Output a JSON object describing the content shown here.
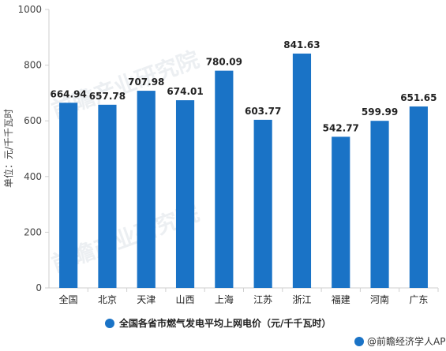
{
  "chart_data": {
    "type": "bar",
    "categories": [
      "全国",
      "北京",
      "天津",
      "山西",
      "上海",
      "江苏",
      "浙江",
      "福建",
      "河南",
      "广东"
    ],
    "series": [
      {
        "name": "全国各省市燃气发电平均上网电价（元/千千瓦时）",
        "values": [
          664.94,
          657.78,
          707.98,
          674.01,
          780.09,
          603.77,
          841.63,
          542.77,
          599.99,
          651.65
        ],
        "color": "#1a73c6"
      }
    ],
    "ylabel": "单位：元/千千瓦时",
    "ylim": [
      0,
      1000
    ],
    "yticks": [
      0,
      200,
      400,
      600,
      800,
      1000
    ],
    "grid": false,
    "legend_position": "bottom"
  },
  "watermark": {
    "text": "前瞻产业研究院",
    "copies": 2
  },
  "source": {
    "text": "@前瞻经济学人APP"
  }
}
